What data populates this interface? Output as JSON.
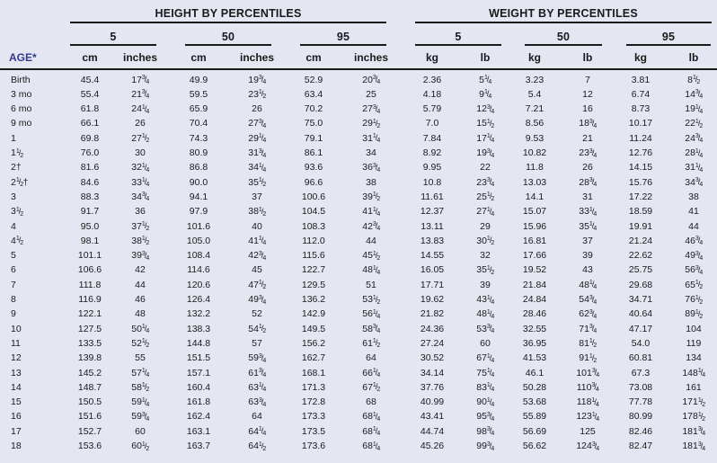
{
  "headers": {
    "height_group": "HEIGHT BY PERCENTILES",
    "weight_group": "WEIGHT BY PERCENTILES",
    "percentiles": [
      "5",
      "50",
      "95"
    ],
    "age": "AGE*",
    "height_units": [
      "cm",
      "inches"
    ],
    "weight_units": [
      "kg",
      "lb"
    ]
  },
  "rows": [
    {
      "age": "Birth",
      "h5_cm": "45.4",
      "h5_in": "17¾",
      "h50_cm": "49.9",
      "h50_in": "19¾",
      "h95_cm": "52.9",
      "h95_in": "20¾",
      "w5_kg": "2.36",
      "w5_lb": "5¼",
      "w50_kg": "3.23",
      "w50_lb": "7",
      "w95_kg": "3.81",
      "w95_lb": "8½"
    },
    {
      "age": "3 mo",
      "h5_cm": "55.4",
      "h5_in": "21¾",
      "h50_cm": "59.5",
      "h50_in": "23½",
      "h95_cm": "63.4",
      "h95_in": "25",
      "w5_kg": "4.18",
      "w5_lb": "9¼",
      "w50_kg": "5.4",
      "w50_lb": "12",
      "w95_kg": "6.74",
      "w95_lb": "14¾"
    },
    {
      "age": "6 mo",
      "h5_cm": "61.8",
      "h5_in": "24¼",
      "h50_cm": "65.9",
      "h50_in": "26",
      "h95_cm": "70.2",
      "h95_in": "27¾",
      "w5_kg": "5.79",
      "w5_lb": "12¾",
      "w50_kg": "7.21",
      "w50_lb": "16",
      "w95_kg": "8.73",
      "w95_lb": "19¼"
    },
    {
      "age": "9 mo",
      "h5_cm": "66.1",
      "h5_in": "26",
      "h50_cm": "70.4",
      "h50_in": "27¾",
      "h95_cm": "75.0",
      "h95_in": "29½",
      "w5_kg": "7.0",
      "w5_lb": "15½",
      "w50_kg": "8.56",
      "w50_lb": "18¾",
      "w95_kg": "10.17",
      "w95_lb": "22½"
    },
    {
      "age": "1",
      "h5_cm": "69.8",
      "h5_in": "27½",
      "h50_cm": "74.3",
      "h50_in": "29¼",
      "h95_cm": "79.1",
      "h95_in": "31¼",
      "w5_kg": "7.84",
      "w5_lb": "17¼",
      "w50_kg": "9.53",
      "w50_lb": "21",
      "w95_kg": "11.24",
      "w95_lb": "24¾"
    },
    {
      "age": "1½",
      "h5_cm": "76.0",
      "h5_in": "30",
      "h50_cm": "80.9",
      "h50_in": "31¾",
      "h95_cm": "86.1",
      "h95_in": "34",
      "w5_kg": "8.92",
      "w5_lb": "19¾",
      "w50_kg": "10.82",
      "w50_lb": "23¾",
      "w95_kg": "12.76",
      "w95_lb": "28¼"
    },
    {
      "age": "2†",
      "h5_cm": "81.6",
      "h5_in": "32¼",
      "h50_cm": "86.8",
      "h50_in": "34¼",
      "h95_cm": "93.6",
      "h95_in": "36¾",
      "w5_kg": "9.95",
      "w5_lb": "22",
      "w50_kg": "11.8",
      "w50_lb": "26",
      "w95_kg": "14.15",
      "w95_lb": "31¼"
    },
    {
      "age": "2½†",
      "h5_cm": "84.6",
      "h5_in": "33¼",
      "h50_cm": "90.0",
      "h50_in": "35½",
      "h95_cm": "96.6",
      "h95_in": "38",
      "w5_kg": "10.8",
      "w5_lb": "23¾",
      "w50_kg": "13.03",
      "w50_lb": "28¾",
      "w95_kg": "15.76",
      "w95_lb": "34¾"
    },
    {
      "age": "3",
      "h5_cm": "88.3",
      "h5_in": "34¾",
      "h50_cm": "94.1",
      "h50_in": "37",
      "h95_cm": "100.6",
      "h95_in": "39½",
      "w5_kg": "11.61",
      "w5_lb": "25½",
      "w50_kg": "14.1",
      "w50_lb": "31",
      "w95_kg": "17.22",
      "w95_lb": "38"
    },
    {
      "age": "3½",
      "h5_cm": "91.7",
      "h5_in": "36",
      "h50_cm": "97.9",
      "h50_in": "38½",
      "h95_cm": "104.5",
      "h95_in": "41¼",
      "w5_kg": "12.37",
      "w5_lb": "27¼",
      "w50_kg": "15.07",
      "w50_lb": "33¼",
      "w95_kg": "18.59",
      "w95_lb": "41"
    },
    {
      "age": "4",
      "h5_cm": "95.0",
      "h5_in": "37½",
      "h50_cm": "101.6",
      "h50_in": "40",
      "h95_cm": "108.3",
      "h95_in": "42¾",
      "w5_kg": "13.11",
      "w5_lb": "29",
      "w50_kg": "15.96",
      "w50_lb": "35¼",
      "w95_kg": "19.91",
      "w95_lb": "44"
    },
    {
      "age": "4½",
      "h5_cm": "98.1",
      "h5_in": "38½",
      "h50_cm": "105.0",
      "h50_in": "41¼",
      "h95_cm": "112.0",
      "h95_in": "44",
      "w5_kg": "13.83",
      "w5_lb": "30½",
      "w50_kg": "16.81",
      "w50_lb": "37",
      "w95_kg": "21.24",
      "w95_lb": "46¾"
    },
    {
      "age": "5",
      "h5_cm": "101.1",
      "h5_in": "39¾",
      "h50_cm": "108.4",
      "h50_in": "42¾",
      "h95_cm": "115.6",
      "h95_in": "45½",
      "w5_kg": "14.55",
      "w5_lb": "32",
      "w50_kg": "17.66",
      "w50_lb": "39",
      "w95_kg": "22.62",
      "w95_lb": "49¾"
    },
    {
      "age": "6",
      "h5_cm": "106.6",
      "h5_in": "42",
      "h50_cm": "114.6",
      "h50_in": "45",
      "h95_cm": "122.7",
      "h95_in": "48¼",
      "w5_kg": "16.05",
      "w5_lb": "35½",
      "w50_kg": "19.52",
      "w50_lb": "43",
      "w95_kg": "25.75",
      "w95_lb": "56¾"
    },
    {
      "age": "7",
      "h5_cm": "111.8",
      "h5_in": "44",
      "h50_cm": "120.6",
      "h50_in": "47½",
      "h95_cm": "129.5",
      "h95_in": "51",
      "w5_kg": "17.71",
      "w5_lb": "39",
      "w50_kg": "21.84",
      "w50_lb": "48¼",
      "w95_kg": "29.68",
      "w95_lb": "65½"
    },
    {
      "age": "8",
      "h5_cm": "116.9",
      "h5_in": "46",
      "h50_cm": "126.4",
      "h50_in": "49¾",
      "h95_cm": "136.2",
      "h95_in": "53½",
      "w5_kg": "19.62",
      "w5_lb": "43¼",
      "w50_kg": "24.84",
      "w50_lb": "54¾",
      "w95_kg": "34.71",
      "w95_lb": "76½"
    },
    {
      "age": "9",
      "h5_cm": "122.1",
      "h5_in": "48",
      "h50_cm": "132.2",
      "h50_in": "52",
      "h95_cm": "142.9",
      "h95_in": "56¼",
      "w5_kg": "21.82",
      "w5_lb": "48¼",
      "w50_kg": "28.46",
      "w50_lb": "62¾",
      "w95_kg": "40.64",
      "w95_lb": "89½"
    },
    {
      "age": "10",
      "h5_cm": "127.5",
      "h5_in": "50¼",
      "h50_cm": "138.3",
      "h50_in": "54½",
      "h95_cm": "149.5",
      "h95_in": "58¾",
      "w5_kg": "24.36",
      "w5_lb": "53¾",
      "w50_kg": "32.55",
      "w50_lb": "71¾",
      "w95_kg": "47.17",
      "w95_lb": "104"
    },
    {
      "age": "11",
      "h5_cm": "133.5",
      "h5_in": "52½",
      "h50_cm": "144.8",
      "h50_in": "57",
      "h95_cm": "156.2",
      "h95_in": "61½",
      "w5_kg": "27.24",
      "w5_lb": "60",
      "w50_kg": "36.95",
      "w50_lb": "81½",
      "w95_kg": "54.0",
      "w95_lb": "119"
    },
    {
      "age": "12",
      "h5_cm": "139.8",
      "h5_in": "55",
      "h50_cm": "151.5",
      "h50_in": "59¾",
      "h95_cm": "162.7",
      "h95_in": "64",
      "w5_kg": "30.52",
      "w5_lb": "67¼",
      "w50_kg": "41.53",
      "w50_lb": "91½",
      "w95_kg": "60.81",
      "w95_lb": "134"
    },
    {
      "age": "13",
      "h5_cm": "145.2",
      "h5_in": "57¼",
      "h50_cm": "157.1",
      "h50_in": "61¾",
      "h95_cm": "168.1",
      "h95_in": "66¼",
      "w5_kg": "34.14",
      "w5_lb": "75¼",
      "w50_kg": "46.1",
      "w50_lb": "101¾",
      "w95_kg": "67.3",
      "w95_lb": "148¼"
    },
    {
      "age": "14",
      "h5_cm": "148.7",
      "h5_in": "58½",
      "h50_cm": "160.4",
      "h50_in": "63¼",
      "h95_cm": "171.3",
      "h95_in": "67½",
      "w5_kg": "37.76",
      "w5_lb": "83¼",
      "w50_kg": "50.28",
      "w50_lb": "110¾",
      "w95_kg": "73.08",
      "w95_lb": "161"
    },
    {
      "age": "15",
      "h5_cm": "150.5",
      "h5_in": "59¼",
      "h50_cm": "161.8",
      "h50_in": "63¾",
      "h95_cm": "172.8",
      "h95_in": "68",
      "w5_kg": "40.99",
      "w5_lb": "90¼",
      "w50_kg": "53.68",
      "w50_lb": "118¼",
      "w95_kg": "77.78",
      "w95_lb": "171½"
    },
    {
      "age": "16",
      "h5_cm": "151.6",
      "h5_in": "59¾",
      "h50_cm": "162.4",
      "h50_in": "64",
      "h95_cm": "173.3",
      "h95_in": "68¼",
      "w5_kg": "43.41",
      "w5_lb": "95¾",
      "w50_kg": "55.89",
      "w50_lb": "123¼",
      "w95_kg": "80.99",
      "w95_lb": "178½"
    },
    {
      "age": "17",
      "h5_cm": "152.7",
      "h5_in": "60",
      "h50_cm": "163.1",
      "h50_in": "64¼",
      "h95_cm": "173.5",
      "h95_in": "68¼",
      "w5_kg": "44.74",
      "w5_lb": "98¾",
      "w50_kg": "56.69",
      "w50_lb": "125",
      "w95_kg": "82.46",
      "w95_lb": "181¾"
    },
    {
      "age": "18",
      "h5_cm": "153.6",
      "h5_in": "60½",
      "h50_cm": "163.7",
      "h50_in": "64½",
      "h95_cm": "173.6",
      "h95_in": "68¼",
      "w5_kg": "45.26",
      "w5_lb": "99¾",
      "w50_kg": "56.62",
      "w50_lb": "124¾",
      "w95_kg": "82.47",
      "w95_lb": "181¾"
    }
  ]
}
